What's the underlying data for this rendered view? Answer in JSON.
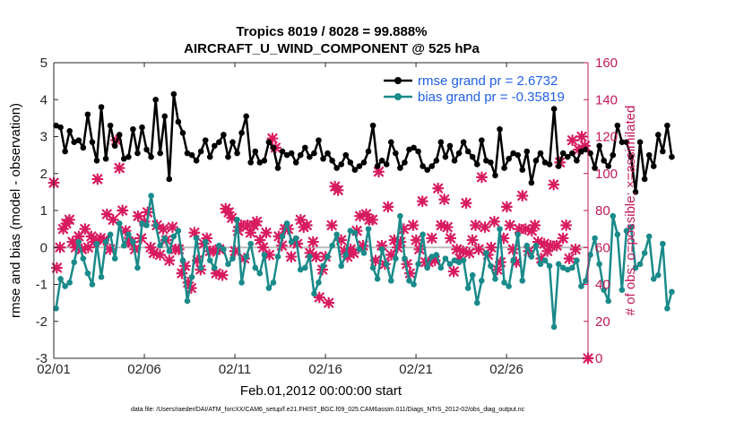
{
  "chart_data": {
    "type": "line",
    "title_line1": "Tropics 8019 / 8028 = 99.888%",
    "title_line2": "AIRCRAFT_U_WIND_COMPONENT @ 525 hPa",
    "xlabel": "Feb.01,2012 00:00:00 start",
    "ylabel_left": "rmse and bias (model - observation)",
    "ylabel_right": "# of obs: o=possible; ×=assimilated",
    "footer": "data file: /Users/raeder/DAI/ATM_forcXX/CAM6_setup/f.e21.FHIST_BGC.f09_025.CAM6assim.011/Diags_NTrS_2012-02/obs_diag_output.nc",
    "x_tick_labels": [
      "02/01",
      "02/06",
      "02/11",
      "02/16",
      "02/21",
      "02/26"
    ],
    "x_tick_values": [
      0,
      5,
      10,
      15,
      20,
      25
    ],
    "xlim": [
      0,
      29.5
    ],
    "ylim_left": [
      -3,
      5
    ],
    "ylim_right": [
      0,
      160
    ],
    "y_ticks_left": [
      -3,
      -2,
      -1,
      0,
      1,
      2,
      3,
      4,
      5
    ],
    "y_ticks_right": [
      0,
      20,
      40,
      60,
      80,
      100,
      120,
      140,
      160
    ],
    "time_step_days": 0.25,
    "colors": {
      "rmse": "#000000",
      "bias": "#1a8a8a",
      "obs": "#d81b60",
      "right_axis": "#c2185b",
      "legend_text": "#1f5fe6",
      "zero_line": "#bbbbbb"
    },
    "legend_position": "top-right",
    "series": [
      {
        "name": "rmse grand pr = 2.6732",
        "axis": "left",
        "values": [
          3.3,
          3.25,
          2.6,
          3.15,
          2.85,
          2.9,
          2.7,
          3.6,
          2.85,
          2.35,
          3.8,
          2.4,
          3.3,
          2.75,
          3.05,
          2.4,
          2.45,
          3.2,
          2.55,
          3.25,
          2.65,
          2.45,
          4.0,
          2.55,
          3.55,
          1.85,
          4.15,
          3.4,
          3.1,
          2.55,
          2.5,
          2.35,
          2.6,
          2.9,
          2.45,
          2.75,
          2.85,
          3.05,
          2.45,
          2.85,
          2.55,
          3.1,
          3.55,
          2.3,
          2.6,
          2.3,
          2.35,
          2.85,
          2.7,
          2.15,
          2.6,
          2.5,
          2.55,
          2.3,
          2.5,
          2.7,
          2.45,
          2.55,
          2.9,
          2.4,
          2.55,
          2.35,
          2.15,
          2.25,
          2.5,
          2.3,
          2.1,
          2.2,
          2.3,
          2.6,
          3.3,
          2.2,
          2.35,
          2.25,
          2.85,
          2.55,
          2.15,
          2.3,
          2.65,
          2.7,
          2.6,
          2.2,
          2.1,
          2.2,
          2.35,
          2.85,
          2.45,
          2.75,
          2.35,
          2.55,
          2.85,
          2.6,
          2.45,
          2.25,
          2.9,
          2.35,
          2.3,
          1.95,
          3.2,
          2.15,
          2.4,
          2.55,
          2.5,
          2.1,
          2.6,
          1.75,
          2.35,
          2.55,
          2.3,
          2.25,
          3.75,
          2.2,
          2.55,
          2.45,
          2.55,
          2.35,
          2.6,
          2.65,
          2.55,
          2.15,
          2.75,
          2.35,
          2.2,
          2.5,
          3.3,
          2.85,
          2.85,
          2.45,
          1.5,
          2.85,
          1.85,
          2.5,
          2.2,
          3.05,
          2.6,
          3.3,
          2.45
        ]
      },
      {
        "name": "bias grand pr = -0.35819",
        "axis": "left",
        "values": [
          -1.65,
          -0.85,
          -1.05,
          -0.95,
          -0.4,
          0.15,
          -0.3,
          -0.7,
          -1.0,
          0.1,
          -0.8,
          0.15,
          0.35,
          -0.3,
          0.65,
          0.05,
          0.35,
          0.15,
          -0.55,
          0.65,
          0.6,
          1.4,
          0.6,
          0.05,
          0.25,
          -0.1,
          0.3,
          0.45,
          -0.35,
          -1.45,
          -0.8,
          0.25,
          -0.55,
          0.15,
          -0.35,
          -0.55,
          0.05,
          -0.05,
          -0.45,
          -0.3,
          0.75,
          -0.95,
          -0.25,
          0.1,
          -0.55,
          -0.7,
          -0.2,
          -1.1,
          -0.95,
          -0.25,
          0.3,
          0.65,
          0.15,
          0.25,
          -0.6,
          -0.55,
          -0.25,
          -1.25,
          -0.95,
          -0.5,
          -0.25,
          0.05,
          0.35,
          -0.5,
          -0.2,
          0.45,
          0.4,
          -0.05,
          -0.15,
          0.5,
          -0.55,
          -0.85,
          -0.05,
          -0.45,
          -0.9,
          -0.3,
          0.85,
          -0.3,
          -0.9,
          -1.0,
          -0.45,
          0.35,
          -0.55,
          -0.25,
          -0.2,
          -0.55,
          -0.3,
          -0.45,
          -0.35,
          -0.4,
          -0.35,
          -1.1,
          -0.75,
          -1.5,
          -0.9,
          -0.15,
          -0.5,
          -0.85,
          0.5,
          -0.95,
          -1.05,
          -0.35,
          0.35,
          -0.9,
          0.05,
          -0.25,
          0.05,
          -0.45,
          -0.35,
          -0.5,
          -2.15,
          -0.45,
          -0.55,
          -0.6,
          -0.55,
          -0.35,
          -1.05,
          -0.9,
          -0.2,
          0.25,
          -0.45,
          -1.15,
          -1.45,
          0.85,
          0.35,
          -1.15,
          0.45,
          0.55,
          -0.55,
          -0.45,
          -0.15,
          0.3,
          -0.85,
          -0.75,
          0.1,
          -1.65,
          -1.2
        ]
      },
      {
        "name": "# of obs assimilated",
        "axis": "right",
        "values": [
          95,
          49,
          60,
          70,
          73,
          75,
          63,
          60,
          66,
          59,
          70,
          60,
          66,
          63,
          97,
          65,
          64,
          78,
          59,
          75,
          118,
          103,
          80,
          69,
          63,
          63,
          59,
          77,
          65,
          74,
          79,
          60,
          57,
          72,
          56,
          70,
          64,
          53,
          71,
          59,
          59,
          46,
          50,
          41,
          38,
          68,
          53,
          48,
          62,
          65,
          58,
          58,
          46,
          59,
          45,
          81,
          79,
          76,
          58,
          69,
          72,
          54,
          72,
          68,
          72,
          74,
          64,
          60,
          68,
          56,
          119,
          114,
          66,
          61,
          70,
          70,
          55,
          63,
          62,
          75,
          71,
          72,
          57,
          63,
          55,
          33,
          48,
          55,
          30,
          72,
          93,
          91,
          64,
          58,
          55,
          59,
          57,
          69,
          77,
          61,
          78,
          75,
          75,
          53,
          101,
          61,
          51,
          82,
          56,
          64,
          60,
          63,
          70,
          51,
          46,
          72,
          64,
          59,
          85,
          52,
          52,
          65,
          53,
          92,
          72,
          86,
          71,
          65,
          47,
          59,
          54,
          58,
          84,
          57,
          64,
          72,
          59,
          98,
          71,
          56,
          60,
          74,
          48,
          52,
          65,
          82,
          72,
          59,
          52,
          70,
          88,
          70,
          58,
          69,
          72,
          63,
          54,
          62,
          58,
          61,
          94,
          61,
          106,
          65,
          72,
          54,
          118,
          59,
          113,
          120,
          115,
          0
        ]
      }
    ]
  }
}
